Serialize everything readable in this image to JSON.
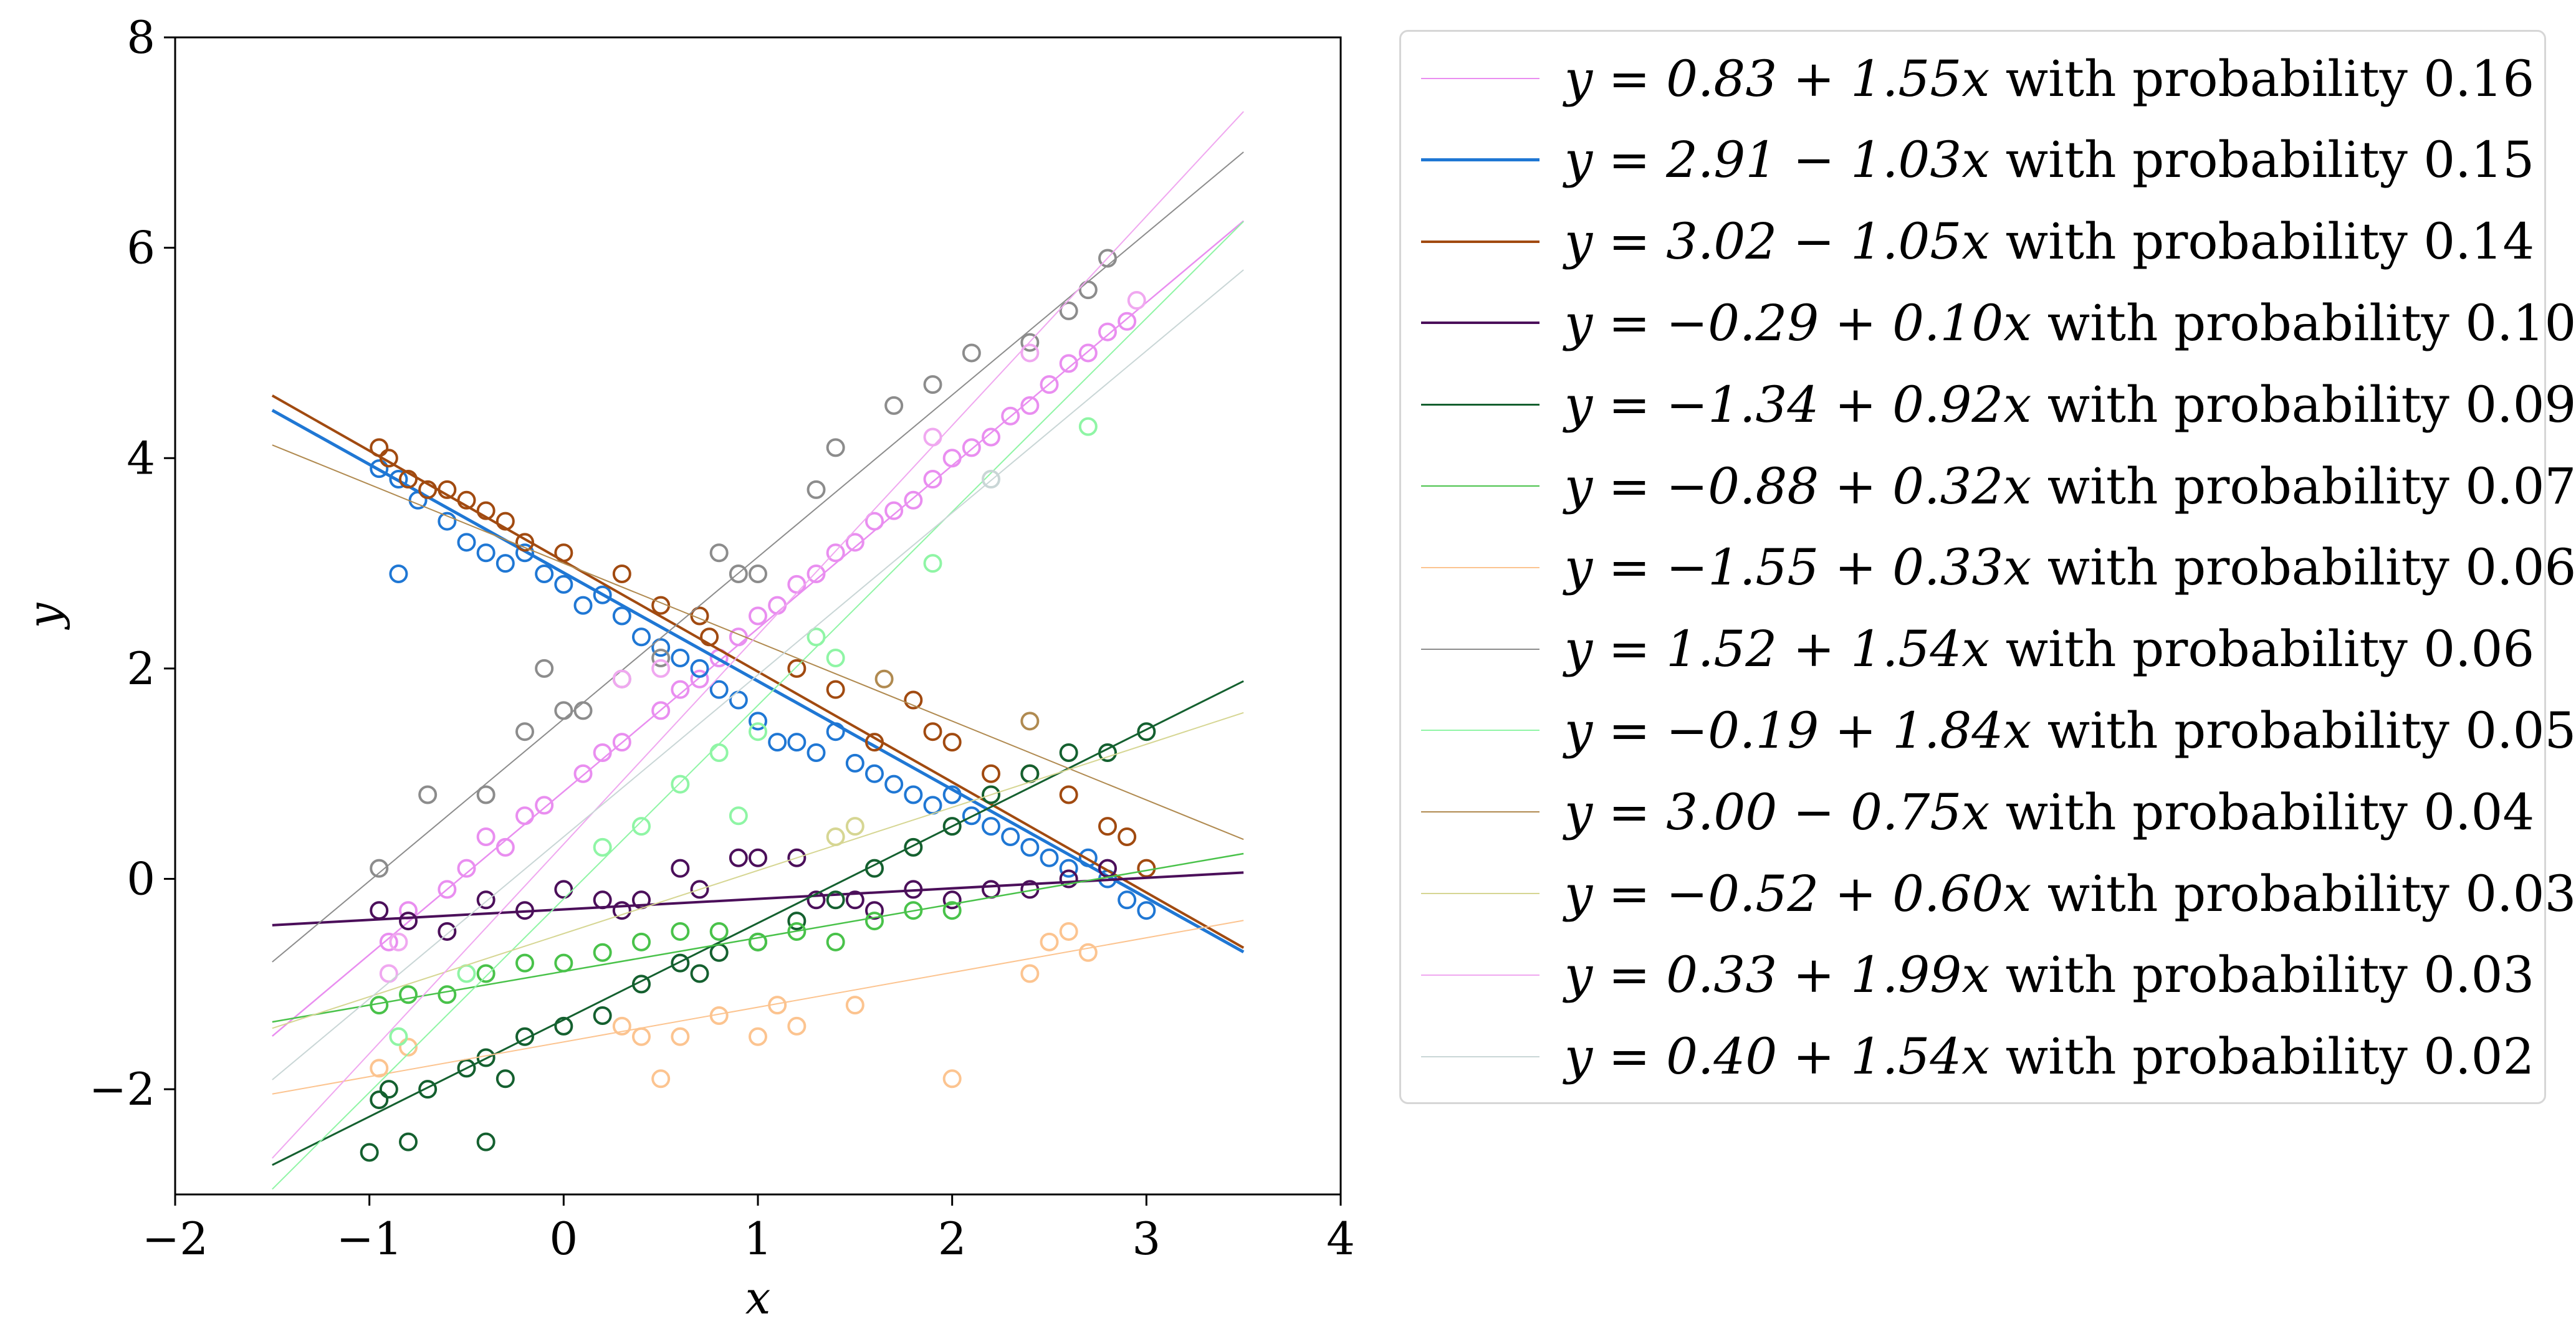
{
  "chart_data": {
    "type": "scatter",
    "title": "",
    "xlabel": "x",
    "ylabel": "y",
    "xlim": [
      -2,
      4
    ],
    "ylim": [
      -3,
      8
    ],
    "x_ticks": [
      -2,
      -1,
      0,
      1,
      2,
      3,
      4
    ],
    "x_tick_labels": [
      "−2",
      "−1",
      "0",
      "1",
      "2",
      "3",
      "4"
    ],
    "y_ticks": [
      -2,
      0,
      2,
      4,
      6,
      8
    ],
    "y_tick_labels": [
      "−2",
      "0",
      "2",
      "4",
      "6",
      "8"
    ],
    "line_x_range": [
      -1.5,
      3.5
    ],
    "legend_position": "outside-right",
    "series": [
      {
        "name": "y = 0.83 + 1.55x",
        "probability": "0.16",
        "intercept": 0.83,
        "slope": 1.55,
        "color": "#e98ef0",
        "points": [
          [
            -0.9,
            -0.6
          ],
          [
            -0.8,
            -0.3
          ],
          [
            -0.6,
            -0.1
          ],
          [
            -0.5,
            0.1
          ],
          [
            -0.4,
            0.4
          ],
          [
            -0.3,
            0.3
          ],
          [
            -0.2,
            0.6
          ],
          [
            -0.1,
            0.7
          ],
          [
            0.1,
            1.0
          ],
          [
            0.2,
            1.2
          ],
          [
            0.3,
            1.3
          ],
          [
            0.5,
            1.6
          ],
          [
            0.6,
            1.8
          ],
          [
            0.7,
            1.9
          ],
          [
            0.8,
            2.1
          ],
          [
            0.9,
            2.3
          ],
          [
            1.0,
            2.5
          ],
          [
            1.1,
            2.6
          ],
          [
            1.2,
            2.8
          ],
          [
            1.3,
            2.9
          ],
          [
            1.4,
            3.1
          ],
          [
            1.5,
            3.2
          ],
          [
            1.6,
            3.4
          ],
          [
            1.7,
            3.5
          ],
          [
            1.8,
            3.6
          ],
          [
            1.9,
            3.8
          ],
          [
            2.0,
            4.0
          ],
          [
            2.1,
            4.1
          ],
          [
            2.2,
            4.2
          ],
          [
            2.3,
            4.4
          ],
          [
            2.4,
            4.5
          ],
          [
            2.5,
            4.7
          ],
          [
            2.6,
            4.9
          ],
          [
            2.7,
            5.0
          ],
          [
            2.8,
            5.2
          ],
          [
            2.9,
            5.3
          ]
        ]
      },
      {
        "name": "y = 2.91 − 1.03x",
        "probability": "0.15",
        "intercept": 2.91,
        "slope": -1.03,
        "color": "#1f77d4",
        "points": [
          [
            -0.95,
            3.9
          ],
          [
            -0.85,
            3.8
          ],
          [
            -0.75,
            3.6
          ],
          [
            -0.6,
            3.4
          ],
          [
            -0.5,
            3.2
          ],
          [
            -0.4,
            3.1
          ],
          [
            -0.3,
            3.0
          ],
          [
            -0.2,
            3.1
          ],
          [
            -0.1,
            2.9
          ],
          [
            0.0,
            2.8
          ],
          [
            0.1,
            2.6
          ],
          [
            0.2,
            2.7
          ],
          [
            0.3,
            2.5
          ],
          [
            0.4,
            2.3
          ],
          [
            0.5,
            2.2
          ],
          [
            0.6,
            2.1
          ],
          [
            0.7,
            2.0
          ],
          [
            0.8,
            1.8
          ],
          [
            0.9,
            1.7
          ],
          [
            1.0,
            1.5
          ],
          [
            1.1,
            1.3
          ],
          [
            1.2,
            1.3
          ],
          [
            1.3,
            1.2
          ],
          [
            1.4,
            1.4
          ],
          [
            1.5,
            1.1
          ],
          [
            1.6,
            1.0
          ],
          [
            1.7,
            0.9
          ],
          [
            1.8,
            0.8
          ],
          [
            1.9,
            0.7
          ],
          [
            2.0,
            0.8
          ],
          [
            2.1,
            0.6
          ],
          [
            2.2,
            0.5
          ],
          [
            2.3,
            0.4
          ],
          [
            2.4,
            0.3
          ],
          [
            2.5,
            0.2
          ],
          [
            2.6,
            0.1
          ],
          [
            2.7,
            0.2
          ],
          [
            2.8,
            0.0
          ],
          [
            2.9,
            -0.2
          ],
          [
            3.0,
            -0.3
          ],
          [
            -0.85,
            2.9
          ]
        ]
      },
      {
        "name": "y = 3.02 − 1.05x",
        "probability": "0.14",
        "intercept": 3.02,
        "slope": -1.05,
        "color": "#a14a10",
        "points": [
          [
            -0.95,
            4.1
          ],
          [
            -0.9,
            4.0
          ],
          [
            -0.8,
            3.8
          ],
          [
            -0.7,
            3.7
          ],
          [
            -0.6,
            3.7
          ],
          [
            -0.5,
            3.6
          ],
          [
            -0.4,
            3.5
          ],
          [
            -0.3,
            3.4
          ],
          [
            -0.2,
            3.2
          ],
          [
            0.0,
            3.1
          ],
          [
            0.3,
            2.9
          ],
          [
            0.5,
            2.6
          ],
          [
            0.7,
            2.5
          ],
          [
            0.75,
            2.3
          ],
          [
            1.2,
            2.0
          ],
          [
            1.4,
            1.8
          ],
          [
            1.6,
            1.3
          ],
          [
            1.8,
            1.7
          ],
          [
            1.9,
            1.4
          ],
          [
            2.0,
            1.3
          ],
          [
            2.2,
            1.0
          ],
          [
            2.4,
            1.0
          ],
          [
            2.6,
            0.8
          ],
          [
            2.8,
            0.5
          ],
          [
            2.9,
            0.4
          ],
          [
            3.0,
            0.1
          ]
        ]
      },
      {
        "name": "y = −0.29 + 0.10x",
        "probability": "0.10",
        "intercept": -0.29,
        "slope": 0.1,
        "color": "#4b0f5a",
        "points": [
          [
            -0.95,
            -0.3
          ],
          [
            -0.8,
            -0.4
          ],
          [
            -0.6,
            -0.5
          ],
          [
            -0.4,
            -0.2
          ],
          [
            -0.2,
            -0.3
          ],
          [
            0.0,
            -0.1
          ],
          [
            0.2,
            -0.2
          ],
          [
            0.3,
            -0.3
          ],
          [
            0.4,
            -0.2
          ],
          [
            0.6,
            0.1
          ],
          [
            0.7,
            -0.1
          ],
          [
            0.9,
            0.2
          ],
          [
            1.0,
            0.2
          ],
          [
            1.2,
            0.2
          ],
          [
            1.3,
            -0.2
          ],
          [
            1.5,
            -0.2
          ],
          [
            1.6,
            -0.3
          ],
          [
            1.8,
            -0.1
          ],
          [
            2.0,
            -0.2
          ],
          [
            2.2,
            -0.1
          ],
          [
            2.4,
            -0.1
          ],
          [
            2.6,
            0.0
          ],
          [
            2.8,
            0.1
          ]
        ]
      },
      {
        "name": "y = −1.34 + 0.92x",
        "probability": "0.09",
        "intercept": -1.34,
        "slope": 0.92,
        "color": "#14602f",
        "points": [
          [
            -0.95,
            -2.1
          ],
          [
            -0.9,
            -2.0
          ],
          [
            -0.8,
            -2.5
          ],
          [
            -0.7,
            -2.0
          ],
          [
            -0.5,
            -1.8
          ],
          [
            -0.4,
            -1.7
          ],
          [
            -0.3,
            -1.9
          ],
          [
            -0.2,
            -1.5
          ],
          [
            0.0,
            -1.4
          ],
          [
            0.2,
            -1.3
          ],
          [
            0.4,
            -1.0
          ],
          [
            0.6,
            -0.8
          ],
          [
            0.7,
            -0.9
          ],
          [
            0.8,
            -0.7
          ],
          [
            1.0,
            -0.6
          ],
          [
            1.2,
            -0.4
          ],
          [
            1.4,
            -0.2
          ],
          [
            1.6,
            0.1
          ],
          [
            1.8,
            0.3
          ],
          [
            2.0,
            0.5
          ],
          [
            2.2,
            0.8
          ],
          [
            2.4,
            1.0
          ],
          [
            2.6,
            1.2
          ],
          [
            2.8,
            1.2
          ],
          [
            3.0,
            1.4
          ],
          [
            -1.0,
            -2.6
          ],
          [
            -0.4,
            -2.5
          ]
        ]
      },
      {
        "name": "y = −0.88 + 0.32x",
        "probability": "0.07",
        "intercept": -0.88,
        "slope": 0.32,
        "color": "#49c24a",
        "points": [
          [
            -0.95,
            -1.2
          ],
          [
            -0.8,
            -1.1
          ],
          [
            -0.6,
            -1.1
          ],
          [
            -0.4,
            -0.9
          ],
          [
            -0.2,
            -0.8
          ],
          [
            0.0,
            -0.8
          ],
          [
            0.2,
            -0.7
          ],
          [
            0.4,
            -0.6
          ],
          [
            0.6,
            -0.5
          ],
          [
            0.8,
            -0.5
          ],
          [
            1.0,
            -0.6
          ],
          [
            1.2,
            -0.5
          ],
          [
            1.4,
            -0.6
          ],
          [
            1.6,
            -0.4
          ],
          [
            1.8,
            -0.3
          ],
          [
            2.0,
            -0.3
          ]
        ]
      },
      {
        "name": "y = −1.55 + 0.33x",
        "probability": "0.06",
        "intercept": -1.55,
        "slope": 0.33,
        "color": "#fcc490",
        "points": [
          [
            -0.95,
            -1.8
          ],
          [
            -0.8,
            -1.6
          ],
          [
            0.3,
            -1.4
          ],
          [
            0.4,
            -1.5
          ],
          [
            0.5,
            -1.9
          ],
          [
            0.6,
            -1.5
          ],
          [
            0.8,
            -1.3
          ],
          [
            1.0,
            -1.5
          ],
          [
            1.1,
            -1.2
          ],
          [
            1.2,
            -1.4
          ],
          [
            1.5,
            -1.2
          ],
          [
            2.0,
            -1.9
          ],
          [
            2.4,
            -0.9
          ],
          [
            2.5,
            -0.6
          ],
          [
            2.6,
            -0.5
          ],
          [
            2.7,
            -0.7
          ]
        ]
      },
      {
        "name": "y = 1.52 + 1.54x",
        "probability": "0.06",
        "intercept": 1.52,
        "slope": 1.54,
        "color": "#8c8c8c",
        "points": [
          [
            -0.95,
            0.1
          ],
          [
            -0.7,
            0.8
          ],
          [
            -0.4,
            0.8
          ],
          [
            -0.2,
            1.4
          ],
          [
            0.0,
            1.6
          ],
          [
            0.1,
            1.6
          ],
          [
            0.3,
            1.9
          ],
          [
            0.5,
            2.1
          ],
          [
            0.8,
            3.1
          ],
          [
            0.9,
            2.9
          ],
          [
            1.0,
            2.9
          ],
          [
            1.3,
            3.7
          ],
          [
            1.4,
            4.1
          ],
          [
            1.7,
            4.5
          ],
          [
            1.9,
            4.7
          ],
          [
            2.1,
            5.0
          ],
          [
            2.4,
            5.1
          ],
          [
            2.6,
            5.4
          ],
          [
            2.7,
            5.6
          ],
          [
            2.8,
            5.9
          ],
          [
            -0.1,
            2.0
          ]
        ]
      },
      {
        "name": "y = −0.19 + 1.84x",
        "probability": "0.05",
        "intercept": -0.19,
        "slope": 1.84,
        "color": "#8ff5a5",
        "points": [
          [
            -0.85,
            -1.5
          ],
          [
            -0.5,
            -0.9
          ],
          [
            0.2,
            0.3
          ],
          [
            0.4,
            0.5
          ],
          [
            0.6,
            0.9
          ],
          [
            0.8,
            1.2
          ],
          [
            0.9,
            0.6
          ],
          [
            1.0,
            1.4
          ],
          [
            1.3,
            2.3
          ],
          [
            1.4,
            2.1
          ],
          [
            1.9,
            3.0
          ],
          [
            2.7,
            4.3
          ]
        ]
      },
      {
        "name": "y = 3.00 − 0.75x",
        "probability": "0.04",
        "intercept": 3.0,
        "slope": -0.75,
        "color": "#b08a50",
        "points": [
          [
            1.65,
            1.9
          ],
          [
            2.4,
            1.5
          ]
        ]
      },
      {
        "name": "y = −0.52 + 0.60x",
        "probability": "0.03",
        "intercept": -0.52,
        "slope": 0.6,
        "color": "#d6d693",
        "points": [
          [
            1.4,
            0.4
          ],
          [
            1.5,
            0.5
          ]
        ]
      },
      {
        "name": "y = 0.33 + 1.99x",
        "probability": "0.03",
        "intercept": 0.33,
        "slope": 1.99,
        "color": "#f0a8f0",
        "points": [
          [
            -0.9,
            -0.9
          ],
          [
            -0.85,
            -0.6
          ],
          [
            0.3,
            1.9
          ],
          [
            0.5,
            2.0
          ],
          [
            1.9,
            4.2
          ],
          [
            2.95,
            5.5
          ],
          [
            2.4,
            5.0
          ]
        ]
      },
      {
        "name": "y = 0.40 + 1.54x",
        "probability": "0.02",
        "intercept": 0.4,
        "slope": 1.54,
        "color": "#c9d6d6",
        "points": [
          [
            2.2,
            3.8
          ]
        ]
      }
    ]
  },
  "legend": {
    "items": [
      {
        "equation": "y = 0.83 + 1.55x",
        "text": " with probability ",
        "prob": "0.16"
      },
      {
        "equation": "y = 2.91 − 1.03x",
        "text": " with probability ",
        "prob": "0.15"
      },
      {
        "equation": "y = 3.02 − 1.05x",
        "text": " with probability ",
        "prob": "0.14"
      },
      {
        "equation": "y = −0.29 + 0.10x",
        "text": " with probability ",
        "prob": "0.10"
      },
      {
        "equation": "y = −1.34 + 0.92x",
        "text": " with probability ",
        "prob": "0.09"
      },
      {
        "equation": "y = −0.88 + 0.32x",
        "text": " with probability ",
        "prob": "0.07"
      },
      {
        "equation": "y = −1.55 + 0.33x",
        "text": " with probability ",
        "prob": "0.06"
      },
      {
        "equation": "y = 1.52 + 1.54x",
        "text": " with probability ",
        "prob": "0.06"
      },
      {
        "equation": "y = −0.19 + 1.84x",
        "text": " with probability ",
        "prob": "0.05"
      },
      {
        "equation": "y = 3.00 − 0.75x",
        "text": " with probability ",
        "prob": "0.04"
      },
      {
        "equation": "y = −0.52 + 0.60x",
        "text": " with probability ",
        "prob": "0.03"
      },
      {
        "equation": "y = 0.33 + 1.99x",
        "text": " with probability ",
        "prob": "0.03"
      },
      {
        "equation": "y = 0.40 + 1.54x",
        "text": " with probability ",
        "prob": "0.02"
      }
    ]
  }
}
